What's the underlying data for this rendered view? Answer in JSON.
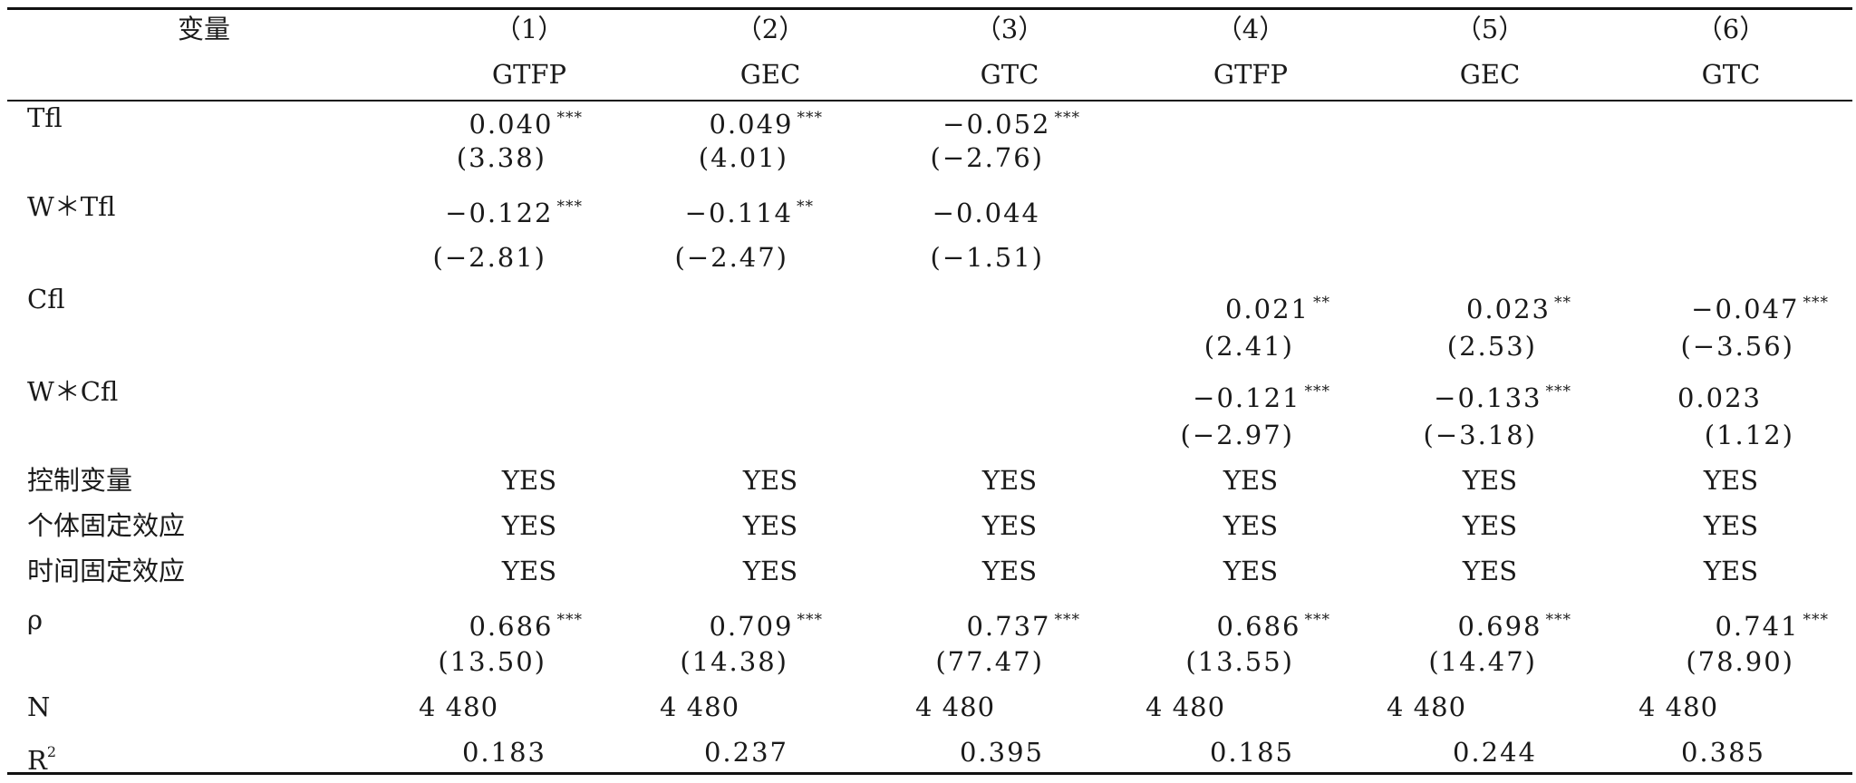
{
  "header": {
    "variable_label": "变量",
    "columns": [
      {
        "index": "（1）",
        "name": "GTFP"
      },
      {
        "index": "（2）",
        "name": "GEC"
      },
      {
        "index": "（3）",
        "name": "GTC"
      },
      {
        "index": "（4）",
        "name": "GTFP"
      },
      {
        "index": "（5）",
        "name": "GEC"
      },
      {
        "index": "（6）",
        "name": "GTC"
      }
    ]
  },
  "rows": {
    "tfl": {
      "label": "Tfl",
      "coef": [
        "0.040",
        "0.049",
        "−0.052"
      ],
      "sig": [
        "***",
        "***",
        "***"
      ],
      "t": [
        "(3.38)",
        "(4.01)",
        "(−2.76)"
      ]
    },
    "w_tfl": {
      "label": "W＊Tfl",
      "coef": [
        "−0.122",
        "−0.114",
        "−0.044"
      ],
      "sig": [
        "***",
        "**",
        ""
      ],
      "t": [
        "(−2.81)",
        "(−2.47)",
        "(−1.51)"
      ]
    },
    "cfl": {
      "label": "Cfl",
      "coef": [
        "0.021",
        "0.023",
        "−0.047"
      ],
      "sig": [
        "**",
        "**",
        "***"
      ],
      "t": [
        "(2.41)",
        "(2.53)",
        "(−3.56)"
      ]
    },
    "w_cfl": {
      "label": "W＊Cfl",
      "coef": [
        "−0.121",
        "−0.133",
        "0.023"
      ],
      "sig": [
        "***",
        "***",
        ""
      ],
      "t": [
        "(−2.97)",
        "(−3.18)",
        "(1.12)"
      ]
    },
    "controls": {
      "label": "控制变量",
      "values": [
        "YES",
        "YES",
        "YES",
        "YES",
        "YES",
        "YES"
      ]
    },
    "individual_fe": {
      "label": "个体固定效应",
      "values": [
        "YES",
        "YES",
        "YES",
        "YES",
        "YES",
        "YES"
      ]
    },
    "time_fe": {
      "label": "时间固定效应",
      "values": [
        "YES",
        "YES",
        "YES",
        "YES",
        "YES",
        "YES"
      ]
    },
    "rho": {
      "label": "ρ",
      "coef": [
        "0.686",
        "0.709",
        "0.737",
        "0.686",
        "0.698",
        "0.741"
      ],
      "sig": [
        "***",
        "***",
        "***",
        "***",
        "***",
        "***"
      ],
      "t": [
        "(13.50)",
        "(14.38)",
        "(77.47)",
        "(13.55)",
        "(14.47)",
        "(78.90)"
      ]
    },
    "n": {
      "label": "N",
      "values": [
        "4 480",
        "4 480",
        "4 480",
        "4 480",
        "4 480",
        "4 480"
      ]
    },
    "r2": {
      "label": "R",
      "label_sup": "2",
      "values": [
        "0.183",
        "0.237",
        "0.395",
        "0.185",
        "0.244",
        "0.385"
      ]
    }
  }
}
